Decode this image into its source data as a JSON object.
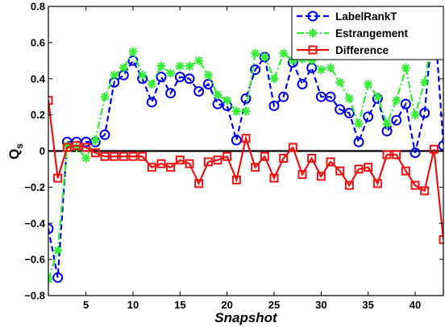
{
  "chart_data": {
    "type": "line",
    "xlabel": "Snapshot",
    "ylabel": "Q",
    "ylabel_subscript": "s",
    "xlim": [
      1,
      43
    ],
    "ylim": [
      -0.8,
      0.8
    ],
    "xticks": [
      5,
      10,
      15,
      20,
      25,
      30,
      35,
      40
    ],
    "yticks": [
      -0.8,
      -0.6,
      -0.4,
      -0.2,
      0,
      0.2,
      0.4,
      0.6,
      0.8
    ],
    "ytick_labels": [
      "−0.8",
      "−0.6",
      "−0.4",
      "−0.2",
      "0",
      "0.2",
      "0.4",
      "0.6",
      "0.8"
    ],
    "zero_line": true,
    "legend_position": "top-right",
    "x": [
      1,
      2,
      3,
      4,
      5,
      6,
      7,
      8,
      9,
      10,
      11,
      12,
      13,
      14,
      15,
      16,
      17,
      18,
      19,
      20,
      21,
      22,
      23,
      24,
      25,
      26,
      27,
      28,
      29,
      30,
      31,
      32,
      33,
      34,
      35,
      36,
      37,
      38,
      39,
      40,
      41,
      42,
      43
    ],
    "series": [
      {
        "name": "LabelRankT",
        "color": "#0000ee",
        "marker": "circle",
        "dash": "dashed",
        "values": [
          -0.43,
          -0.7,
          0.05,
          0.05,
          0.05,
          0.05,
          0.09,
          0.38,
          0.42,
          0.5,
          0.4,
          0.27,
          0.41,
          0.32,
          0.41,
          0.4,
          0.33,
          0.37,
          0.26,
          0.25,
          0.06,
          0.29,
          0.45,
          0.52,
          0.25,
          0.3,
          0.49,
          0.37,
          0.46,
          0.3,
          0.3,
          0.23,
          0.21,
          0.05,
          0.19,
          0.29,
          0.11,
          0.17,
          0.26,
          -0.01,
          0.21,
          0.78,
          0.03
        ]
      },
      {
        "name": "Estrangement",
        "color": "#33ee33",
        "marker": "asterisk",
        "dash": "dashdot",
        "values": [
          -0.71,
          -0.55,
          0.03,
          0.02,
          -0.04,
          0.06,
          0.3,
          0.42,
          0.46,
          0.55,
          0.42,
          0.37,
          0.47,
          0.43,
          0.47,
          0.47,
          0.5,
          0.42,
          0.31,
          0.28,
          0.22,
          0.22,
          0.54,
          0.52,
          0.4,
          0.54,
          0.5,
          0.51,
          0.5,
          0.45,
          0.46,
          0.38,
          0.29,
          0.15,
          0.37,
          0.3,
          0.15,
          0.28,
          0.46,
          0.2,
          0.38,
          0.7,
          0.53
        ]
      },
      {
        "name": "Difference",
        "color": "#ee1111",
        "marker": "square",
        "dash": "solid",
        "values": [
          0.28,
          -0.15,
          0.02,
          0.03,
          0.02,
          -0.01,
          -0.03,
          -0.03,
          -0.03,
          -0.03,
          -0.03,
          -0.09,
          -0.07,
          -0.09,
          -0.05,
          -0.07,
          -0.18,
          -0.06,
          -0.05,
          -0.03,
          -0.16,
          0.07,
          -0.09,
          -0.03,
          -0.15,
          -0.04,
          0.02,
          -0.13,
          -0.04,
          -0.14,
          -0.06,
          -0.11,
          -0.19,
          -0.1,
          -0.09,
          -0.18,
          -0.02,
          -0.02,
          -0.11,
          -0.19,
          -0.22,
          0.01,
          -0.49
        ]
      }
    ]
  }
}
